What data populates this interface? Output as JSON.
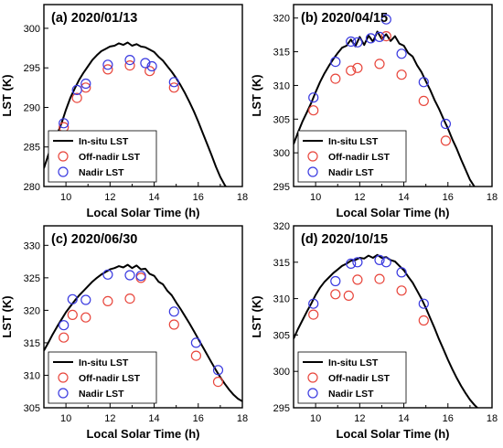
{
  "chart_data": [
    {
      "type": "scatter",
      "title": "(a) 2020/01/13",
      "xlabel": "Local Solar Time (h)",
      "ylabel": "LST (K)",
      "xlim": [
        9,
        18
      ],
      "ylim": [
        280,
        303
      ],
      "xticks": [
        10,
        12,
        14,
        16,
        18
      ],
      "yticks": [
        280,
        285,
        290,
        295,
        300
      ],
      "legend": [
        "In-situ LST",
        "Off-nadir LST",
        "Nadir LST"
      ],
      "legend_position": "lower-left",
      "series": [
        {
          "name": "In-situ LST",
          "kind": "line",
          "color": "#000000",
          "x": [
            9.0,
            9.2,
            9.4,
            9.6,
            9.8,
            10.0,
            10.2,
            10.4,
            10.6,
            10.8,
            11.0,
            11.2,
            11.4,
            11.6,
            11.8,
            12.0,
            12.2,
            12.4,
            12.6,
            12.8,
            13.0,
            13.2,
            13.4,
            13.6,
            13.8,
            14.0,
            14.2,
            14.4,
            14.6,
            14.8,
            15.0,
            15.2,
            15.4,
            15.6,
            15.8,
            16.0,
            16.2,
            16.4,
            16.6,
            16.8,
            17.0,
            17.2,
            17.4,
            17.6
          ],
          "y": [
            282.3,
            284.0,
            285.4,
            286.6,
            288.0,
            289.7,
            291.2,
            292.4,
            293.5,
            294.4,
            295.2,
            296.0,
            296.6,
            297.1,
            297.4,
            297.7,
            297.8,
            298.1,
            297.9,
            298.2,
            297.8,
            298.0,
            297.7,
            297.6,
            297.3,
            297.0,
            296.4,
            295.9,
            295.2,
            294.5,
            293.7,
            292.8,
            291.8,
            290.7,
            289.5,
            288.2,
            286.8,
            285.4,
            284.0,
            282.5,
            281.2,
            280.2,
            279.4,
            279.0
          ]
        },
        {
          "name": "Off-nadir LST",
          "kind": "scatter",
          "color": "#e8463c",
          "x": [
            9.9,
            10.5,
            10.9,
            11.9,
            12.9,
            13.8,
            14.9
          ],
          "y": [
            287.5,
            291.2,
            292.5,
            294.8,
            295.3,
            294.6,
            292.5
          ]
        },
        {
          "name": "Nadir LST",
          "kind": "scatter",
          "color": "#3a3ae0",
          "x": [
            9.9,
            10.5,
            10.9,
            11.9,
            12.9,
            13.6,
            13.9,
            14.9
          ],
          "y": [
            288.0,
            292.2,
            293.0,
            295.4,
            296.0,
            295.6,
            295.2,
            293.2
          ]
        }
      ]
    },
    {
      "type": "scatter",
      "title": "(b) 2020/04/15",
      "xlabel": "Local Solar Time (h)",
      "ylabel": "LST (K)",
      "xlim": [
        9,
        18
      ],
      "ylim": [
        295,
        322
      ],
      "xticks": [
        10,
        12,
        14,
        16,
        18
      ],
      "yticks": [
        295,
        300,
        305,
        310,
        315,
        320
      ],
      "legend": [
        "In-situ LST",
        "Off-nadir LST",
        "Nadir LST"
      ],
      "legend_position": "lower-left",
      "series": [
        {
          "name": "In-situ LST",
          "kind": "line",
          "color": "#000000",
          "x": [
            9.0,
            9.2,
            9.4,
            9.6,
            9.8,
            10.0,
            10.2,
            10.4,
            10.6,
            10.8,
            11.0,
            11.2,
            11.4,
            11.6,
            11.8,
            12.0,
            12.2,
            12.4,
            12.6,
            12.8,
            13.0,
            13.2,
            13.4,
            13.6,
            13.8,
            14.0,
            14.2,
            14.4,
            14.6,
            14.8,
            15.0,
            15.2,
            15.4,
            15.6,
            15.8,
            16.0,
            16.2,
            16.4,
            16.6,
            16.8,
            17.0,
            17.2
          ],
          "y": [
            301.3,
            303.0,
            304.6,
            306.0,
            307.4,
            309.0,
            310.5,
            311.8,
            312.9,
            313.9,
            314.8,
            315.6,
            315.9,
            316.8,
            315.8,
            317.2,
            316.0,
            317.4,
            316.5,
            318.0,
            316.9,
            317.6,
            316.6,
            317.3,
            316.2,
            315.9,
            314.8,
            314.3,
            313.0,
            312.0,
            310.6,
            309.3,
            307.8,
            306.5,
            305.0,
            303.6,
            302.0,
            300.6,
            299.0,
            297.5,
            296.0,
            295.0
          ]
        },
        {
          "name": "Off-nadir LST",
          "kind": "scatter",
          "color": "#e8463c",
          "x": [
            9.9,
            10.9,
            11.6,
            11.9,
            12.9,
            13.2,
            13.9,
            14.9,
            15.9
          ],
          "y": [
            306.3,
            311.0,
            312.2,
            312.6,
            313.2,
            317.3,
            311.6,
            307.7,
            301.8
          ]
        },
        {
          "name": "Nadir LST",
          "kind": "scatter",
          "color": "#3a3ae0",
          "x": [
            9.9,
            10.9,
            11.6,
            11.9,
            12.5,
            12.9,
            13.2,
            13.9,
            14.9,
            15.9
          ],
          "y": [
            308.2,
            313.5,
            316.5,
            316.4,
            317.0,
            317.2,
            319.8,
            314.7,
            310.5,
            304.3
          ]
        }
      ]
    },
    {
      "type": "scatter",
      "title": "(c) 2020/06/30",
      "xlabel": "Local Solar Time (h)",
      "ylabel": "LST (K)",
      "xlim": [
        9,
        18
      ],
      "ylim": [
        305,
        333
      ],
      "xticks": [
        10,
        12,
        14,
        16,
        18
      ],
      "yticks": [
        305,
        310,
        315,
        320,
        325,
        330
      ],
      "legend": [
        "In-situ LST",
        "Off-nadir LST",
        "Nadir LST"
      ],
      "legend_position": "lower-left",
      "series": [
        {
          "name": "In-situ LST",
          "kind": "line",
          "color": "#000000",
          "x": [
            9.0,
            9.2,
            9.4,
            9.6,
            9.8,
            10.0,
            10.2,
            10.4,
            10.6,
            10.8,
            11.0,
            11.2,
            11.4,
            11.6,
            11.8,
            12.0,
            12.2,
            12.4,
            12.6,
            12.8,
            13.0,
            13.2,
            13.4,
            13.6,
            13.8,
            14.0,
            14.2,
            14.4,
            14.6,
            14.8,
            15.0,
            15.2,
            15.4,
            15.6,
            15.8,
            16.0,
            16.2,
            16.4,
            16.6,
            16.8,
            17.0,
            17.2,
            17.4,
            17.6,
            17.8,
            18.0
          ],
          "y": [
            313.8,
            315.0,
            316.3,
            317.5,
            318.6,
            319.7,
            320.6,
            321.5,
            322.3,
            323.0,
            323.7,
            324.4,
            325.0,
            325.5,
            325.9,
            326.3,
            326.5,
            326.8,
            326.6,
            327.0,
            326.5,
            326.9,
            326.3,
            326.4,
            325.6,
            325.3,
            324.4,
            324.0,
            323.0,
            322.3,
            321.2,
            320.2,
            319.1,
            318.0,
            316.8,
            315.6,
            314.4,
            313.2,
            312.0,
            310.8,
            309.7,
            308.7,
            307.8,
            307.0,
            306.4,
            306.0
          ]
        },
        {
          "name": "Off-nadir LST",
          "kind": "scatter",
          "color": "#e8463c",
          "x": [
            9.9,
            10.3,
            10.9,
            11.9,
            12.9,
            13.4,
            14.9,
            15.9,
            16.9
          ],
          "y": [
            315.8,
            319.3,
            318.9,
            321.4,
            321.8,
            325.0,
            317.8,
            313.0,
            309.0
          ]
        },
        {
          "name": "Nadir LST",
          "kind": "scatter",
          "color": "#3a3ae0",
          "x": [
            9.9,
            10.3,
            10.9,
            11.9,
            12.9,
            13.4,
            14.9,
            15.9,
            16.9
          ],
          "y": [
            317.7,
            321.7,
            321.6,
            325.5,
            325.4,
            325.3,
            319.8,
            315.0,
            310.8
          ]
        }
      ]
    },
    {
      "type": "scatter",
      "title": "(d) 2020/10/15",
      "xlabel": "Local Solar Time (h)",
      "ylabel": "LST (K)",
      "xlim": [
        9,
        18
      ],
      "ylim": [
        295,
        320
      ],
      "xticks": [
        10,
        12,
        14,
        16,
        18
      ],
      "yticks": [
        295,
        300,
        305,
        310,
        315,
        320
      ],
      "legend": [
        "In-situ LST",
        "Off-nadir LST",
        "Nadir LST"
      ],
      "legend_position": "lower-left",
      "series": [
        {
          "name": "In-situ LST",
          "kind": "line",
          "color": "#000000",
          "x": [
            9.0,
            9.2,
            9.4,
            9.6,
            9.8,
            10.0,
            10.2,
            10.4,
            10.6,
            10.8,
            11.0,
            11.2,
            11.4,
            11.6,
            11.8,
            12.0,
            12.2,
            12.4,
            12.6,
            12.8,
            13.0,
            13.2,
            13.4,
            13.6,
            13.8,
            14.0,
            14.2,
            14.4,
            14.6,
            14.8,
            15.0,
            15.2,
            15.4,
            15.6,
            15.8,
            16.0,
            16.2,
            16.4,
            16.6,
            16.8,
            17.0,
            17.2,
            17.4
          ],
          "y": [
            304.5,
            305.8,
            307.0,
            308.2,
            309.3,
            310.5,
            311.5,
            312.3,
            312.9,
            313.5,
            314.0,
            314.5,
            314.8,
            315.2,
            315.3,
            315.6,
            315.5,
            315.9,
            315.6,
            316.0,
            315.6,
            315.7,
            315.3,
            315.1,
            314.5,
            313.9,
            313.0,
            312.2,
            311.1,
            310.0,
            308.7,
            307.3,
            305.9,
            304.4,
            303.0,
            301.6,
            300.3,
            299.1,
            298.0,
            297.0,
            296.1,
            295.4,
            294.8
          ]
        },
        {
          "name": "Off-nadir LST",
          "kind": "scatter",
          "color": "#e8463c",
          "x": [
            9.9,
            10.9,
            11.5,
            11.9,
            12.9,
            13.9,
            14.9
          ],
          "y": [
            307.8,
            310.6,
            310.4,
            312.6,
            312.7,
            311.1,
            307.0
          ]
        },
        {
          "name": "Nadir LST",
          "kind": "scatter",
          "color": "#3a3ae0",
          "x": [
            9.9,
            10.9,
            11.6,
            11.9,
            12.9,
            13.2,
            13.9,
            14.9
          ],
          "y": [
            309.3,
            312.4,
            314.8,
            315.0,
            315.3,
            315.0,
            313.6,
            309.3
          ]
        }
      ]
    }
  ]
}
